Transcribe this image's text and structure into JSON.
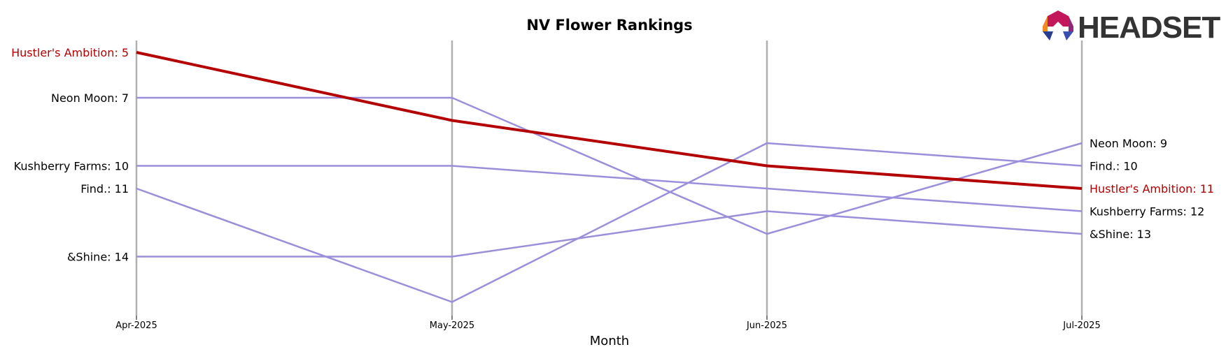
{
  "brand": {
    "name": "HEADSET"
  },
  "chart_data": {
    "type": "line",
    "title": "NV Flower Rankings",
    "xlabel": "Month",
    "ylabel": "",
    "categories": [
      "Apr-2025",
      "May-2025",
      "Jun-2025",
      "Jul-2025"
    ],
    "ylim": [
      17,
      4
    ],
    "y_inverted": true,
    "grid": "vertical lines at each month",
    "highlight_series": "Hustler's Ambition",
    "colors": {
      "highlight": "#b30000",
      "other": "#9b8edb",
      "vgrid": "#b0b0b0"
    },
    "series": [
      {
        "name": "Hustler's Ambition",
        "values": [
          5,
          8,
          10,
          11
        ]
      },
      {
        "name": "Neon Moon",
        "values": [
          7,
          7,
          13,
          9
        ]
      },
      {
        "name": "Kushberry Farms",
        "values": [
          10,
          10,
          11,
          12
        ]
      },
      {
        "name": "Find.",
        "values": [
          11,
          16,
          9,
          10
        ]
      },
      {
        "name": "&Shine",
        "values": [
          14,
          14,
          12,
          13
        ]
      }
    ],
    "left_labels": [
      "Hustler's Ambition: 5",
      "Neon Moon: 7",
      "Kushberry Farms: 10",
      "Find.: 11",
      "&Shine: 14"
    ],
    "right_labels": [
      "Neon Moon: 9",
      "Find.: 10",
      "Hustler's Ambition: 11",
      "Kushberry Farms: 12",
      "&Shine: 13"
    ]
  }
}
